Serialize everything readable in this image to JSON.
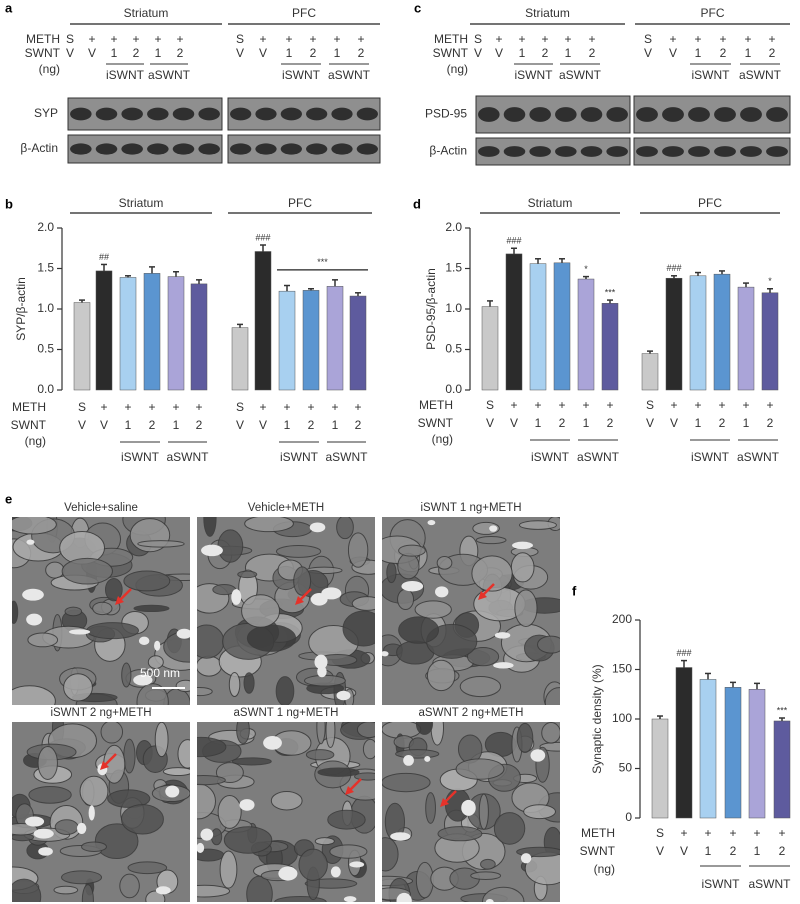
{
  "blots": [
    {
      "panel": "a",
      "row_labels": [
        "METH",
        "SWNT",
        "(ng)"
      ],
      "groups": [
        {
          "name": "Striatum",
          "meth": [
            "S",
            "+",
            "+",
            "+",
            "+",
            "+"
          ],
          "swnt": [
            "V",
            "V",
            "1",
            "2",
            "1",
            "2"
          ]
        },
        {
          "name": "PFC",
          "meth": [
            "S",
            "+",
            "+",
            "+",
            "+",
            "+"
          ],
          "swnt": [
            "V",
            "V",
            "1",
            "2",
            "1",
            "2"
          ]
        }
      ],
      "bracket_labels": [
        "iSWNT",
        "aSWNT"
      ],
      "bands": [
        "SYP",
        "β-Actin"
      ]
    },
    {
      "panel": "c",
      "row_labels": [
        "METH",
        "SWNT",
        "(ng)"
      ],
      "groups": [
        {
          "name": "Striatum",
          "meth": [
            "S",
            "+",
            "+",
            "+",
            "+",
            "+"
          ],
          "swnt": [
            "V",
            "V",
            "1",
            "2",
            "1",
            "2"
          ]
        },
        {
          "name": "PFC",
          "meth": [
            "S",
            "+",
            "+",
            "+",
            "+",
            "+"
          ],
          "swnt": [
            "V",
            "V",
            "1",
            "2",
            "1",
            "2"
          ]
        }
      ],
      "bracket_labels": [
        "iSWNT",
        "aSWNT"
      ],
      "bands": [
        "PSD-95",
        "β-Actin"
      ]
    }
  ],
  "micrographs": {
    "panel": "e",
    "titles": [
      "Vehicle+saline",
      "Vehicle+METH",
      "iSWNT 1 ng+METH",
      "iSWNT 2 ng+METH",
      "aSWNT 1 ng+METH",
      "aSWNT 2 ng+METH"
    ],
    "scale_bar": "500 nm"
  },
  "chart_data": [
    {
      "type": "bar",
      "panel": "b",
      "y_label": "SYP/β-actin",
      "ylim": [
        0,
        2
      ],
      "yticks": [
        {
          "value": 0,
          "label": "0.0"
        },
        0.5,
        {
          "value": 1,
          "label": "1.0"
        },
        1.5,
        {
          "value": 2,
          "label": "2.0"
        }
      ],
      "colors": [
        "#c9c9c9",
        "#2b2b2b",
        "#a8d0f0",
        "#5b95d0",
        "#aaa4d8",
        "#5e5b9e"
      ],
      "row_labels": [
        "METH",
        "SWNT",
        "(ng)"
      ],
      "bracket_labels": [
        "iSWNT",
        "aSWNT"
      ],
      "groups": [
        {
          "name": "Striatum",
          "meth": [
            "S",
            "+",
            "+",
            "+",
            "+",
            "+"
          ],
          "swnt": [
            "V",
            "V",
            "1",
            "2",
            "1",
            "2"
          ],
          "values": [
            1.08,
            1.47,
            1.39,
            1.44,
            1.4,
            1.31
          ],
          "errors": [
            0.03,
            0.08,
            0.02,
            0.08,
            0.06,
            0.05
          ],
          "significance": [
            null,
            "##",
            null,
            null,
            null,
            null
          ]
        },
        {
          "name": "PFC",
          "meth": [
            "S",
            "+",
            "+",
            "+",
            "+",
            "+"
          ],
          "swnt": [
            "V",
            "V",
            "1",
            "2",
            "1",
            "2"
          ],
          "values": [
            0.77,
            1.71,
            1.22,
            1.23,
            1.28,
            1.16
          ],
          "errors": [
            0.04,
            0.08,
            0.07,
            0.02,
            0.08,
            0.04
          ],
          "significance": [
            null,
            "###",
            null,
            null,
            null,
            null
          ],
          "annotation": "***"
        }
      ]
    },
    {
      "type": "bar",
      "panel": "d",
      "y_label": "PSD-95/β-actin",
      "ylim": [
        0,
        2
      ],
      "yticks": [
        {
          "value": 0,
          "label": "0.0"
        },
        0.5,
        {
          "value": 1,
          "label": "1.0"
        },
        1.5,
        {
          "value": 2,
          "label": "2.0"
        }
      ],
      "colors": [
        "#c9c9c9",
        "#2b2b2b",
        "#a8d0f0",
        "#5b95d0",
        "#aaa4d8",
        "#5e5b9e"
      ],
      "row_labels": [
        "METH",
        "SWNT",
        "(ng)"
      ],
      "bracket_labels": [
        "iSWNT",
        "aSWNT"
      ],
      "groups": [
        {
          "name": "Striatum",
          "meth": [
            "S",
            "+",
            "+",
            "+",
            "+",
            "+"
          ],
          "swnt": [
            "V",
            "V",
            "1",
            "2",
            "1",
            "2"
          ],
          "values": [
            1.03,
            1.68,
            1.56,
            1.57,
            1.37,
            1.07
          ],
          "errors": [
            0.07,
            0.07,
            0.06,
            0.05,
            0.03,
            0.04
          ],
          "significance": [
            null,
            "###",
            null,
            null,
            "*",
            "***"
          ]
        },
        {
          "name": "PFC",
          "meth": [
            "S",
            "+",
            "+",
            "+",
            "+",
            "+"
          ],
          "swnt": [
            "V",
            "V",
            "1",
            "2",
            "1",
            "2"
          ],
          "values": [
            0.45,
            1.38,
            1.41,
            1.43,
            1.27,
            1.2
          ],
          "errors": [
            0.03,
            0.03,
            0.04,
            0.04,
            0.05,
            0.05
          ],
          "significance": [
            null,
            "###",
            null,
            null,
            null,
            "*"
          ]
        }
      ]
    },
    {
      "type": "bar",
      "panel": "f",
      "y_label": "Synaptic density (%)",
      "ylim": [
        0,
        200
      ],
      "yticks": [
        0,
        50,
        100,
        150,
        200
      ],
      "colors": [
        "#c9c9c9",
        "#2b2b2b",
        "#a8d0f0",
        "#5b95d0",
        "#aaa4d8",
        "#5e5b9e"
      ],
      "row_labels": [
        "METH",
        "SWNT",
        "(ng)"
      ],
      "bracket_labels": [
        "iSWNT",
        "aSWNT"
      ],
      "groups": [
        {
          "meth": [
            "S",
            "+",
            "+",
            "+",
            "+",
            "+"
          ],
          "swnt": [
            "V",
            "V",
            "1",
            "2",
            "1",
            "2"
          ],
          "values": [
            100,
            152,
            140,
            132,
            130,
            98
          ],
          "errors": [
            3,
            7,
            6,
            5,
            6,
            3
          ],
          "significance": [
            null,
            "###",
            null,
            null,
            null,
            "***"
          ]
        }
      ]
    }
  ]
}
